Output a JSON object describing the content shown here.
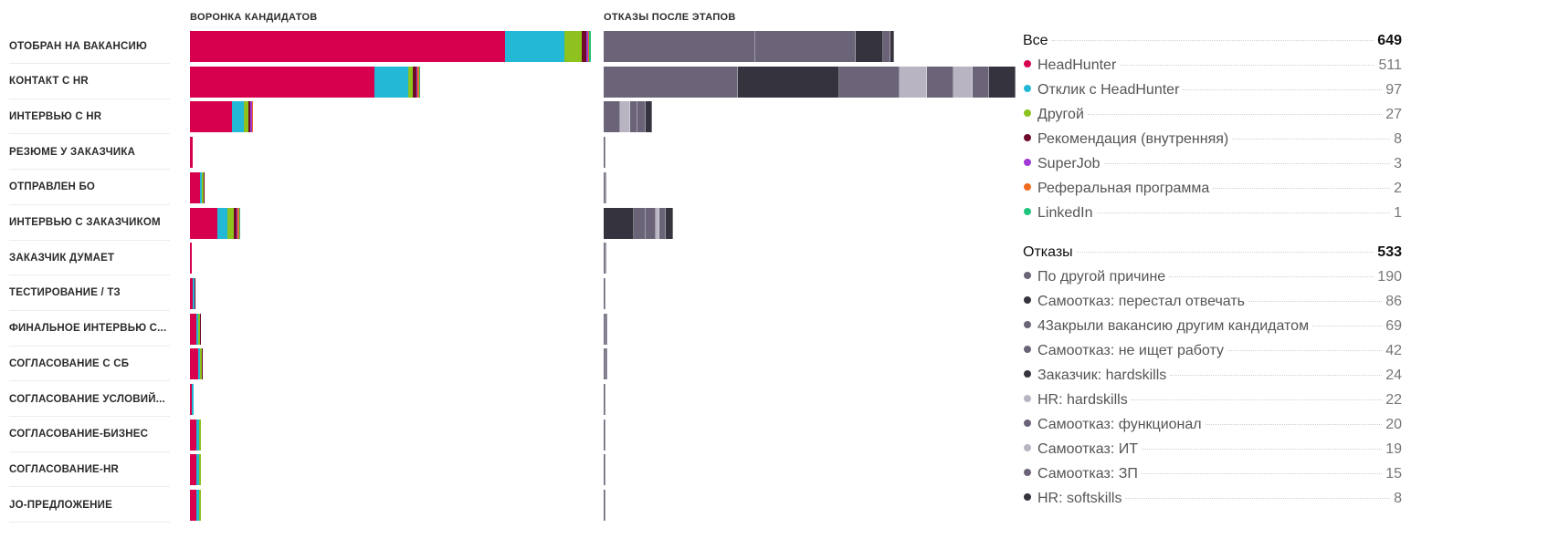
{
  "chart_data": {
    "type": "bar",
    "funnel_title": "ВОРОНКА КАНДИДАТОВ",
    "rejections_title": "ОТКАЗЫ ПОСЛЕ ЭТАПОВ",
    "categories": [
      "ОТОБРАН НА ВАКАНСИЮ",
      "КОНТАКТ С HR",
      "ИНТЕРВЬЮ С HR",
      "РЕЗЮМЕ У ЗАКАЗЧИКА",
      "ОТПРАВЛЕН БО",
      "ИНТЕРВЬЮ С ЗАКАЗЧИКОМ",
      "ЗАКАЗЧИК ДУМАЕТ",
      "ТЕСТИРОВАНИЕ / ТЗ",
      "ФИНАЛЬНОЕ ИНТЕРВЬЮ С...",
      "СОГЛАСОВАНИЕ С СБ",
      "СОГЛАСОВАНИЕ УСЛОВИЙ...",
      "СОГЛАСОВАНИЕ-БИЗНЕС",
      "СОГЛАСОВАНИЕ-HR",
      "JO-ПРЕДЛОЖЕНИЕ"
    ],
    "funnel_series": [
      {
        "name": "HeadHunter",
        "color": "#d6004f",
        "values": [
          511,
          300,
          68,
          4,
          16,
          45,
          2,
          5,
          10,
          14,
          3,
          11,
          11,
          11
        ]
      },
      {
        "name": "Отклик с HeadHunter",
        "color": "#23b9d6",
        "values": [
          97,
          54,
          20,
          0,
          4,
          16,
          0,
          1,
          4,
          3,
          1,
          4,
          4,
          4
        ]
      },
      {
        "name": "Другой",
        "color": "#8dc21f",
        "values": [
          27,
          8,
          7,
          0,
          1,
          10,
          0,
          0,
          2,
          2,
          0,
          1,
          1,
          1
        ]
      },
      {
        "name": "Рекомендация (внутренняя)",
        "color": "#6e0a2a",
        "values": [
          8,
          5,
          3,
          0,
          1,
          4,
          0,
          1,
          1,
          1,
          0,
          0,
          0,
          0
        ]
      },
      {
        "name": "SuperJob",
        "color": "#a23ad6",
        "values": [
          3,
          2,
          1,
          0,
          0,
          1,
          0,
          0,
          0,
          0,
          0,
          0,
          0,
          0
        ]
      },
      {
        "name": "Реферальная программа",
        "color": "#f06b1f",
        "values": [
          2,
          1,
          1,
          0,
          0,
          1,
          0,
          0,
          0,
          0,
          0,
          0,
          0,
          0
        ]
      },
      {
        "name": "LinkedIn",
        "color": "#21c47c",
        "values": [
          1,
          1,
          0,
          0,
          0,
          1,
          0,
          0,
          0,
          0,
          0,
          0,
          0,
          0
        ]
      }
    ],
    "rejection_series": [
      {
        "name": "По другой причине",
        "color": "#6b6478",
        "values": [
          225,
          200,
          25,
          2,
          1,
          0,
          2,
          1,
          3,
          3,
          1,
          1,
          1,
          1
        ]
      },
      {
        "name": "Самоотказ: перестал отвечать",
        "color": "#35333d",
        "values": [
          0,
          150,
          0,
          0,
          0,
          45,
          0,
          0,
          0,
          0,
          0,
          0,
          0,
          0
        ]
      },
      {
        "name": "43акрыли вакансию другим кандидатом",
        "color": "#6b6478",
        "values": [
          150,
          90,
          0,
          0,
          0,
          0,
          0,
          0,
          0,
          0,
          0,
          0,
          0,
          0
        ]
      },
      {
        "name": "Самоотказ: не ищет работу",
        "color": "#6b6478",
        "values": [
          0,
          0,
          0,
          0,
          0,
          18,
          0,
          0,
          0,
          0,
          0,
          0,
          0,
          0
        ]
      },
      {
        "name": "Заказчик: hardskills",
        "color": "#35333d",
        "values": [
          40,
          0,
          0,
          0,
          0,
          0,
          0,
          0,
          0,
          0,
          0,
          0,
          0,
          0
        ]
      },
      {
        "name": "HR: hardskills",
        "color": "#b8b4c2",
        "values": [
          0,
          40,
          15,
          0,
          0,
          0,
          0,
          0,
          0,
          0,
          0,
          0,
          0,
          0
        ]
      },
      {
        "name": "Самоотказ: функционал",
        "color": "#6b6478",
        "values": [
          12,
          40,
          10,
          0,
          2,
          14,
          1,
          0,
          2,
          2,
          0,
          0,
          0,
          0
        ]
      },
      {
        "name": "Самоотказ: ИТ",
        "color": "#b8b4c2",
        "values": [
          0,
          28,
          0,
          0,
          0,
          6,
          0,
          0,
          0,
          0,
          0,
          0,
          0,
          0
        ]
      },
      {
        "name": "Самоотказ: ЗП",
        "color": "#6b6478",
        "values": [
          0,
          25,
          12,
          0,
          0,
          10,
          0,
          0,
          0,
          0,
          0,
          0,
          0,
          0
        ]
      },
      {
        "name": "HR: softskills",
        "color": "#35333d",
        "values": [
          5,
          40,
          10,
          0,
          0,
          10,
          0,
          0,
          0,
          0,
          0,
          0,
          0,
          0
        ]
      }
    ],
    "legend_sources_title": "Все",
    "legend_sources_total": "649",
    "legend_sources": [
      {
        "label": "HeadHunter",
        "value": "511",
        "color": "#d6004f"
      },
      {
        "label": "Отклик с HeadHunter",
        "value": "97",
        "color": "#23b9d6"
      },
      {
        "label": "Другой",
        "value": "27",
        "color": "#8dc21f"
      },
      {
        "label": "Рекомендация (внутренняя)",
        "value": "8",
        "color": "#6e0a2a"
      },
      {
        "label": "SuperJob",
        "value": "3",
        "color": "#a23ad6"
      },
      {
        "label": "Реферальная программа",
        "value": "2",
        "color": "#f06b1f"
      },
      {
        "label": "LinkedIn",
        "value": "1",
        "color": "#21c47c"
      }
    ],
    "legend_rejections_title": "Отказы",
    "legend_rejections_total": "533",
    "legend_rejections": [
      {
        "label": "По другой причине",
        "value": "190",
        "color": "#6b6478"
      },
      {
        "label": "Самоотказ: перестал отвечать",
        "value": "86",
        "color": "#35333d"
      },
      {
        "label": "43акрыли вакансию другим кандидатом",
        "value": "69",
        "color": "#6b6478"
      },
      {
        "label": "Самоотказ: не ищет работу",
        "value": "42",
        "color": "#6b6478"
      },
      {
        "label": "Заказчик: hardskills",
        "value": "24",
        "color": "#35333d"
      },
      {
        "label": "HR: hardskills",
        "value": "22",
        "color": "#b8b4c2"
      },
      {
        "label": "Самоотказ: функционал",
        "value": "20",
        "color": "#6b6478"
      },
      {
        "label": "Самоотказ: ИТ",
        "value": "19",
        "color": "#b8b4c2"
      },
      {
        "label": "Самоотказ: ЗП",
        "value": "15",
        "color": "#6b6478"
      },
      {
        "label": "HR: softskills",
        "value": "8",
        "color": "#35333d"
      }
    ]
  }
}
